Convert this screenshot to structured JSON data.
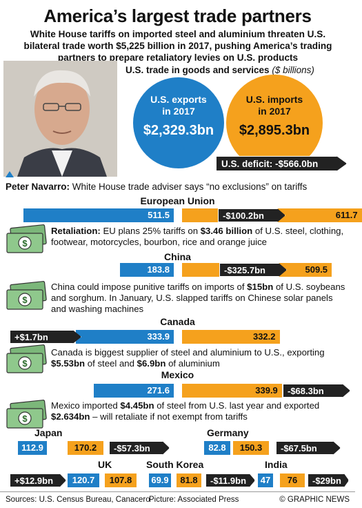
{
  "title": "America’s largest trade partners",
  "subtitle": "White House tariffs on imported steel and aluminium threaten U.S. bilateral trade worth $5,225 billion in 2017, pushing America’s trading partners to prepare retaliatory levies on U.S. products",
  "summary": {
    "header": "U.S. trade in goods and services",
    "header_unit": "($ billions)",
    "exports_label": "U.S. exports in 2017",
    "exports_value": "$2,329.3bn",
    "imports_label": "U.S. imports in 2017",
    "imports_value": "$2,895.3bn",
    "deficit": "U.S. deficit: -$566.0bn"
  },
  "caption": {
    "name": "Peter Navarro:",
    "text": " White House trade adviser says “no exclusions” on tariffs"
  },
  "notes": {
    "eu": "<b>Retaliation:</b> EU plans 25% tariffs on <b>$3.46 billion</b> of U.S. steel, clothing, footwear, motorcycles, bourbon, rice and orange juice",
    "china": "China could impose punitive tariffs on imports of <b>$15bn</b> of U.S. soybeans and sorghum. In January, U.S. slapped tariffs on Chinese solar panels and washing machines",
    "canada": "Canada is biggest supplier of steel and aluminium to U.S., exporting <b>$5.53bn</b> of steel and <b>$6.9bn</b> of aluminium",
    "mexico": "Mexico imported <b>$4.45bn</b> of steel from U.S. last year and exported <b>$2.634bn</b> – will retaliate if not exempt from tariffs"
  },
  "colors": {
    "exports": "#1f7fc7",
    "imports": "#f5a11d",
    "balance": "#222222"
  },
  "chart_data": {
    "type": "bar",
    "title": "U.S. trade in goods and services",
    "unit": "$ billions",
    "series": [
      {
        "name": "U.S. exports",
        "values": [
          511.5,
          183.8,
          333.9,
          271.6,
          112.9,
          82.8,
          120.7,
          69.9,
          47
        ]
      },
      {
        "name": "U.S. imports",
        "values": [
          611.7,
          509.5,
          332.2,
          339.9,
          170.2,
          150.3,
          107.8,
          81.8,
          76
        ]
      }
    ],
    "categories": [
      "European Union",
      "China",
      "Canada",
      "Mexico",
      "Japan",
      "Germany",
      "UK",
      "South Korea",
      "India"
    ],
    "partners": [
      {
        "name": "European Union",
        "exports": "511.5",
        "imports": "611.7",
        "balance": "-$100.2bn"
      },
      {
        "name": "China",
        "exports": "183.8",
        "imports": "509.5",
        "balance": "-$325.7bn"
      },
      {
        "name": "Canada",
        "exports": "333.9",
        "imports": "332.2",
        "balance": "+$1.7bn"
      },
      {
        "name": "Mexico",
        "exports": "271.6",
        "imports": "339.9",
        "balance": "-$68.3bn"
      },
      {
        "name": "Japan",
        "exports": "112.9",
        "imports": "170.2",
        "balance": "-$57.3bn"
      },
      {
        "name": "Germany",
        "exports": "82.8",
        "imports": "150.3",
        "balance": "-$67.5bn"
      },
      {
        "name": "UK",
        "exports": "120.7",
        "imports": "107.8",
        "balance": "+$12.9bn"
      },
      {
        "name": "South Korea",
        "exports": "69.9",
        "imports": "81.8",
        "balance": "-$11.9bn"
      },
      {
        "name": "India",
        "exports": "47",
        "imports": "76",
        "balance": "-$29bn"
      }
    ]
  },
  "footer": {
    "sources": "Sources: U.S. Census Bureau, Canacero",
    "picture": "Picture: Associated Press",
    "credit": "© GRAPHIC NEWS"
  }
}
